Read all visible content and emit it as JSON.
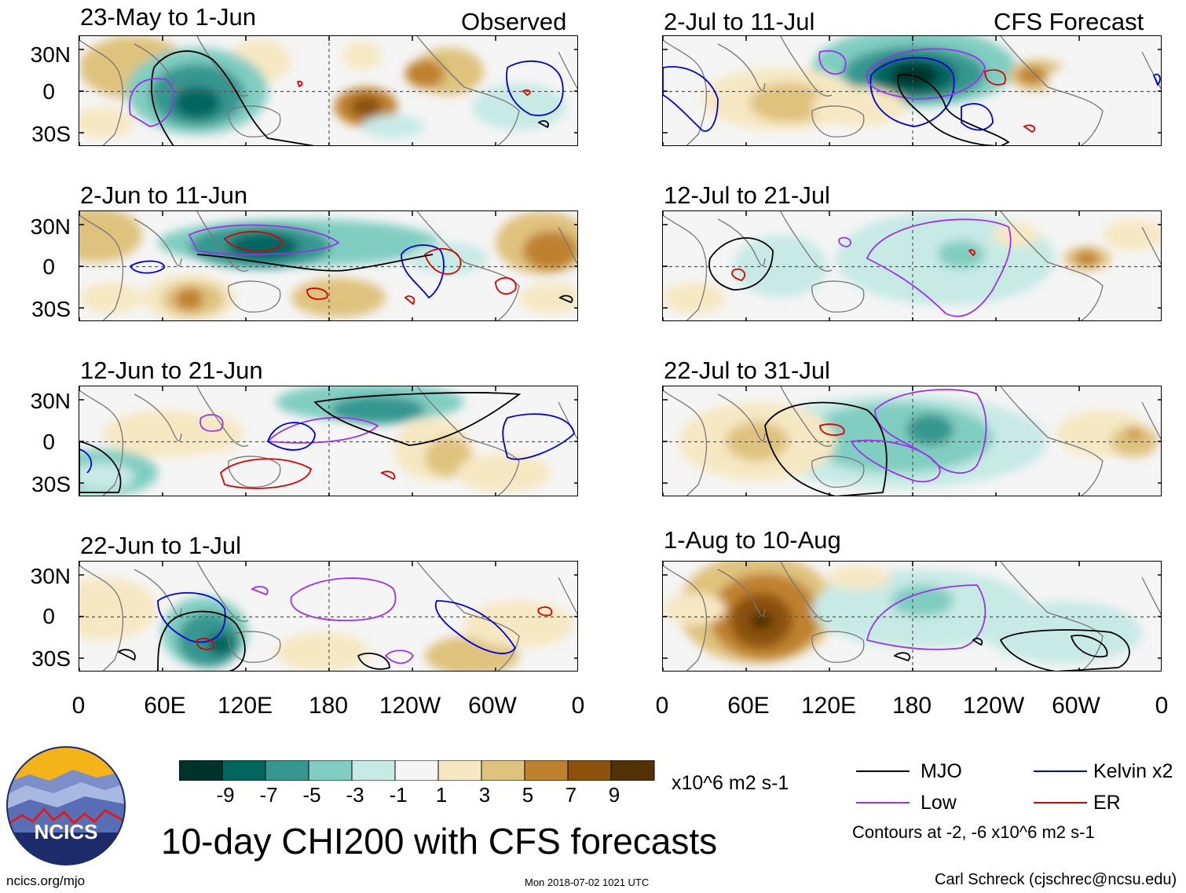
{
  "chart_data": {
    "type": "heatmap",
    "title": "10-day CHI200 with CFS forecasts",
    "variable": "200-hPa velocity potential (CHI200)",
    "units": "x10^6 m2 s-1",
    "contours_note": "Contours at -2, -6 x10^6 m2 s-1",
    "lat_ticks": [
      "30N",
      "0",
      "30S"
    ],
    "lon_ticks": [
      "0",
      "60E",
      "120E",
      "180",
      "120W",
      "60W",
      "0"
    ],
    "colorbar": {
      "labels": [
        "-9",
        "-7",
        "-5",
        "-3",
        "-1",
        "1",
        "3",
        "5",
        "7",
        "9"
      ],
      "colors": [
        "#01332b",
        "#01665e",
        "#35978f",
        "#80cdc1",
        "#c7eae5",
        "#f5f5f5",
        "#f6e8c3",
        "#dfc27d",
        "#bf812d",
        "#8c510a",
        "#543005"
      ]
    },
    "legend": [
      {
        "label": "MJO",
        "color": "#000000"
      },
      {
        "label": "Kelvin x2",
        "color": "#0000dd"
      },
      {
        "label": "Low",
        "color": "#9933ee"
      },
      {
        "label": "ER",
        "color": "#dd0000"
      }
    ],
    "panels": [
      {
        "id": "p1",
        "title": "23-May to 1-Jun",
        "label": "Observed"
      },
      {
        "id": "p2",
        "title": "2-Jun to 11-Jun"
      },
      {
        "id": "p3",
        "title": "12-Jun to 21-Jun"
      },
      {
        "id": "p4",
        "title": "22-Jun to 1-Jul"
      },
      {
        "id": "p5",
        "title": "2-Jul to 11-Jul",
        "label": "CFS Forecast"
      },
      {
        "id": "p6",
        "title": "12-Jul to 21-Jul"
      },
      {
        "id": "p7",
        "title": "22-Jul to 31-Jul"
      },
      {
        "id": "p8",
        "title": "1-Aug to 10-Aug"
      }
    ]
  },
  "footer": {
    "logo_text": "NCICS",
    "url": "ncics.org/mjo",
    "timestamp": "Mon 2018-07-02 1021 UTC",
    "author": "Carl Schreck (cjschrec@ncsu.edu)"
  }
}
